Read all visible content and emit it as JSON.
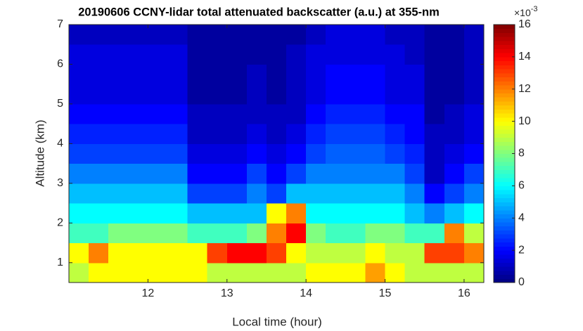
{
  "chart_data": {
    "type": "heatmap",
    "title": "20190606 CCNY-lidar total attenuated backscatter (a.u.) at 355-nm",
    "x_label": "Local time (hour)",
    "y_label": "Altitude (km)",
    "colormap": "jet",
    "colorbar_scale": {
      "base": "×10",
      "exponent": "-3"
    },
    "xlim": [
      11,
      16.25
    ],
    "ylim": [
      0.5,
      7
    ],
    "clim": [
      0,
      16
    ],
    "xticks": [
      12,
      13,
      14,
      15,
      16
    ],
    "yticks": [
      1,
      2,
      3,
      4,
      5,
      6,
      7
    ],
    "cticks": [
      0,
      2,
      4,
      6,
      8,
      10,
      12,
      14,
      16
    ],
    "xbins": [
      11,
      11.25,
      11.5,
      11.75,
      12,
      12.25,
      12.5,
      12.75,
      13,
      13.25,
      13.5,
      13.75,
      14,
      14.25,
      14.5,
      14.75,
      15,
      15.25,
      15.5,
      15.75,
      16,
      16.25
    ],
    "ybins": [
      0.5,
      1,
      1.5,
      2,
      2.5,
      3,
      3.5,
      4,
      4.5,
      5,
      5.5,
      6,
      6.5,
      7
    ],
    "z": [
      [
        9,
        10,
        10,
        10,
        10,
        10,
        10,
        9,
        9,
        9,
        9,
        9,
        10,
        10,
        10,
        11.5,
        10,
        9,
        9,
        9,
        9
      ],
      [
        10,
        12,
        10,
        10,
        10,
        10,
        10,
        13,
        14,
        14,
        13,
        10,
        9,
        9,
        9,
        10,
        9,
        9,
        13,
        13,
        12
      ],
      [
        7,
        7,
        8,
        8,
        8,
        8,
        7,
        7,
        7,
        8,
        12,
        14,
        8,
        7,
        7,
        8,
        8,
        7,
        7,
        12,
        9
      ],
      [
        6,
        6,
        6,
        6,
        6,
        6,
        5,
        5,
        5,
        5,
        10,
        12,
        6,
        6,
        6,
        6,
        6,
        5,
        4,
        5,
        6
      ],
      [
        5,
        5,
        5,
        5,
        5,
        5,
        3,
        3,
        3,
        4,
        3,
        5,
        5,
        5,
        5,
        5,
        5,
        4,
        2,
        3,
        4
      ],
      [
        4,
        4,
        4,
        4,
        4,
        4,
        2,
        2,
        2,
        3,
        2,
        3,
        4,
        4,
        4,
        4,
        4,
        3,
        1,
        2,
        3
      ],
      [
        3,
        3,
        3,
        3,
        3,
        3,
        1.5,
        1.5,
        1.5,
        2,
        1.5,
        2,
        3,
        3.5,
        3.5,
        3.5,
        3,
        2.5,
        1,
        1.5,
        2
      ],
      [
        2.5,
        2.5,
        2.5,
        2.5,
        2.5,
        2.5,
        1,
        1,
        1,
        1.5,
        1,
        1.5,
        2.5,
        3,
        3,
        3,
        2.5,
        2,
        1,
        1,
        1.5
      ],
      [
        2,
        2,
        2,
        2,
        2,
        2,
        1,
        1,
        1,
        1,
        1,
        1,
        2,
        2.5,
        2.5,
        2.5,
        2,
        2,
        0.5,
        1,
        1.5
      ],
      [
        1.5,
        1.5,
        1.5,
        1.5,
        1.5,
        1.5,
        0.5,
        0.5,
        0.5,
        1,
        0.5,
        1,
        1.5,
        2,
        2,
        2,
        1.5,
        1.5,
        0.5,
        0.5,
        1
      ],
      [
        1.5,
        1.5,
        1.5,
        1.5,
        1.5,
        1.5,
        0.5,
        0.5,
        0.5,
        1,
        0.5,
        1,
        1.5,
        2,
        2,
        2,
        1.5,
        1.5,
        0.5,
        0.5,
        1
      ],
      [
        1.5,
        1.5,
        1.5,
        1.5,
        1.5,
        1.5,
        0.5,
        0.5,
        0.5,
        0.5,
        0.5,
        1,
        1.5,
        1.5,
        1.5,
        1.5,
        1.5,
        1,
        0.5,
        0.5,
        1
      ],
      [
        1,
        1,
        1,
        1,
        1,
        1,
        0.5,
        0.5,
        0.5,
        0.5,
        0.5,
        0.5,
        1,
        1.5,
        1.5,
        1.5,
        1,
        1,
        0.5,
        0.5,
        1
      ]
    ]
  }
}
